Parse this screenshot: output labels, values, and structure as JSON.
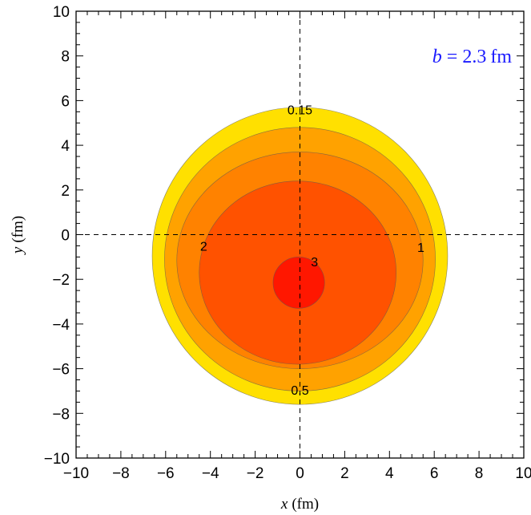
{
  "chart_data": {
    "type": "contour",
    "title": "",
    "xlabel_var": "x",
    "xlabel_unit": "(fm)",
    "ylabel_var": "y",
    "ylabel_unit": "(fm)",
    "xlim": [
      -10,
      10
    ],
    "ylim": [
      -10,
      10
    ],
    "x_ticks": [
      -10,
      -8,
      -6,
      -4,
      -2,
      0,
      2,
      4,
      6,
      8,
      10
    ],
    "y_ticks": [
      -10,
      -8,
      -6,
      -4,
      -2,
      0,
      2,
      4,
      6,
      8,
      10
    ],
    "x_tick_labels": [
      "−10",
      "−8",
      "−6",
      "−4",
      "−2",
      "0",
      "2",
      "4",
      "6",
      "8",
      "10"
    ],
    "y_tick_labels": [
      "−10",
      "−8",
      "−6",
      "−4",
      "−2",
      "0",
      "2",
      "4",
      "6",
      "8",
      "10"
    ],
    "minor_tick_step": 0.5,
    "grid": false,
    "crosshair_lines": [
      {
        "orientation": "vertical",
        "value": 0,
        "style": "dashed"
      },
      {
        "orientation": "horizontal",
        "value": 0,
        "style": "dashed"
      }
    ],
    "contour_levels": [
      {
        "level": "0.15",
        "color": "#FFE000",
        "cx": 0,
        "cy": -0.95,
        "rx": 6.6,
        "ry": 6.65
      },
      {
        "level": "0.5",
        "color": "#FFA200",
        "cx": 0,
        "cy": -1.1,
        "rx": 6.05,
        "ry": 5.9
      },
      {
        "level": "1",
        "color": "#FF8200",
        "cx": 0,
        "cy": -1.15,
        "rx": 5.5,
        "ry": 4.85
      },
      {
        "level": "2",
        "color": "#FF5200",
        "cx": -0.1,
        "cy": -1.7,
        "rx": 4.4,
        "ry": 4.1
      },
      {
        "level": "3",
        "color": "#FF1700",
        "cx": -0.05,
        "cy": -2.15,
        "rx": 1.15,
        "ry": 1.15
      }
    ],
    "contour_labels": [
      {
        "text": "0.15",
        "x": 0,
        "y": 5.6
      },
      {
        "text": "0.5",
        "x": 0,
        "y": -6.95
      },
      {
        "text": "2",
        "x": -4.3,
        "y": -0.5
      },
      {
        "text": "1",
        "x": 5.4,
        "y": -0.55
      },
      {
        "text": "3",
        "x": 0.65,
        "y": -1.2
      }
    ],
    "annotation": {
      "var": "b",
      "eq": " = 2.3",
      "unit": "fm",
      "color": "#1a1aff"
    }
  }
}
